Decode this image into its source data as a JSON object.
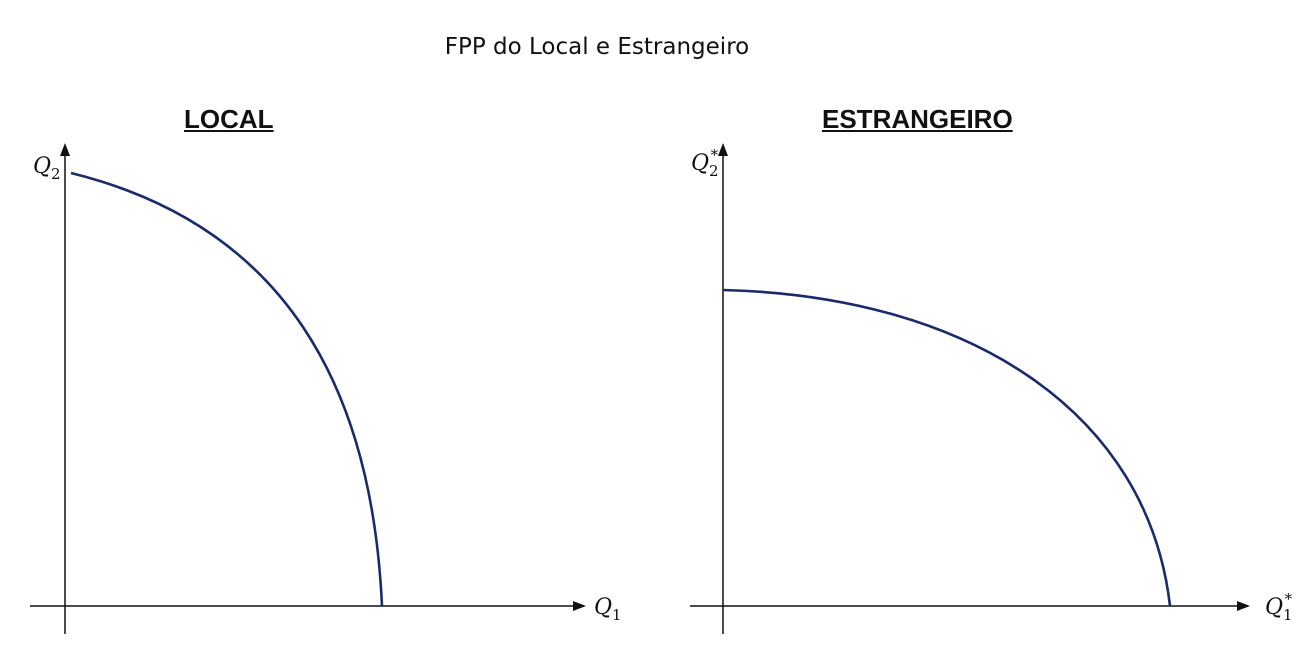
{
  "title": "FPP do Local e Estrangeiro",
  "panels": {
    "local": {
      "title": "LOCAL",
      "y_axis_label": "Q",
      "y_axis_sub": "2",
      "y_axis_sup": "",
      "x_axis_label": "Q",
      "x_axis_sub": "1",
      "x_axis_sup": ""
    },
    "foreign": {
      "title": "ESTRANGEIRO",
      "y_axis_label": "Q",
      "y_axis_sub": "2",
      "y_axis_sup": "*",
      "x_axis_label": "Q",
      "x_axis_sub": "1",
      "x_axis_sup": "*"
    }
  },
  "colors": {
    "curve": "#1b2a6b",
    "axis": "#111111"
  }
}
